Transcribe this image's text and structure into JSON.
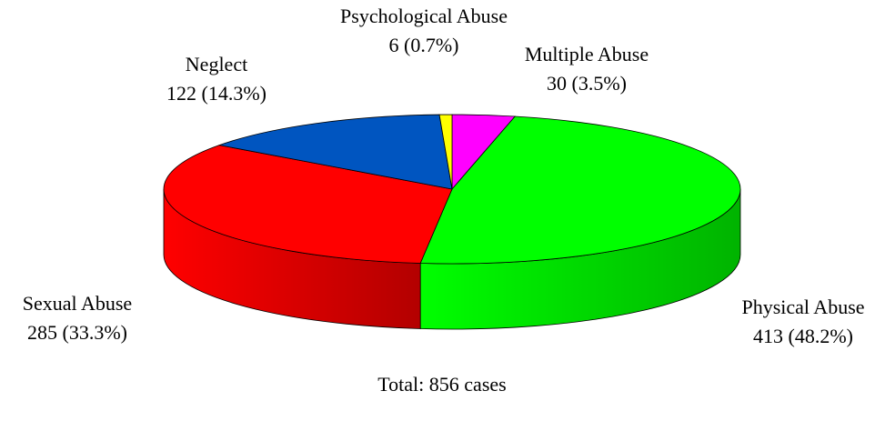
{
  "chart_data": {
    "type": "pie",
    "categories": [
      "Multiple Abuse",
      "Physical Abuse",
      "Sexual Abuse",
      "Neglect",
      "Psychological Abuse"
    ],
    "values": [
      30,
      413,
      285,
      122,
      6
    ],
    "value_labels": [
      "30 (3.5%)",
      "413 (48.2%)",
      "285 (33.3%)",
      "122 (14.3%)",
      "6 (0.7%)"
    ],
    "colors": [
      "#ff00ff",
      "#00ff00",
      "#ff0000",
      "#0055c0",
      "#ffff00"
    ],
    "annotation": "Total: 856 cases"
  }
}
